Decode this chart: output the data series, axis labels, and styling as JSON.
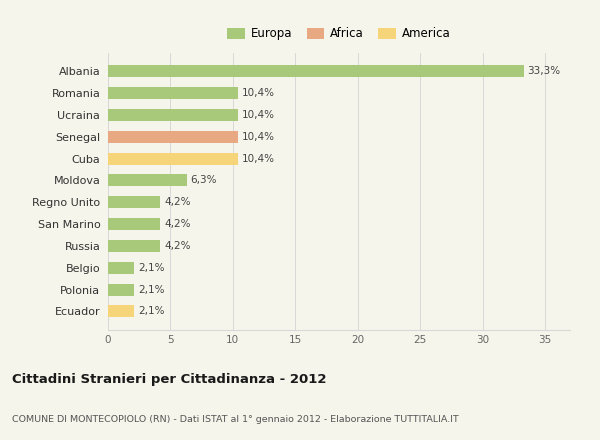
{
  "countries": [
    "Albania",
    "Romania",
    "Ucraina",
    "Senegal",
    "Cuba",
    "Moldova",
    "Regno Unito",
    "San Marino",
    "Russia",
    "Belgio",
    "Polonia",
    "Ecuador"
  ],
  "values": [
    33.3,
    10.4,
    10.4,
    10.4,
    10.4,
    6.3,
    4.2,
    4.2,
    4.2,
    2.1,
    2.1,
    2.1
  ],
  "colors": [
    "#a8c87a",
    "#a8c87a",
    "#a8c87a",
    "#e8a882",
    "#f5d47a",
    "#a8c87a",
    "#a8c87a",
    "#a8c87a",
    "#a8c87a",
    "#a8c87a",
    "#a8c87a",
    "#f5d47a"
  ],
  "legend_labels": [
    "Europa",
    "Africa",
    "America"
  ],
  "legend_colors": [
    "#a8c87a",
    "#e8a882",
    "#f5d47a"
  ],
  "label_texts": [
    "33,3%",
    "10,4%",
    "10,4%",
    "10,4%",
    "10,4%",
    "6,3%",
    "4,2%",
    "4,2%",
    "4,2%",
    "2,1%",
    "2,1%",
    "2,1%"
  ],
  "title_bold": "Cittadini Stranieri per Cittadinanza - 2012",
  "subtitle": "COMUNE DI MONTECOPIOLO (RN) - Dati ISTAT al 1° gennaio 2012 - Elaborazione TUTTITALIA.IT",
  "xlim": [
    0,
    37
  ],
  "xticks": [
    0,
    5,
    10,
    15,
    20,
    25,
    30,
    35
  ],
  "background_color": "#f5f5eb",
  "grid_color": "#d8d8d8",
  "bar_height": 0.55
}
